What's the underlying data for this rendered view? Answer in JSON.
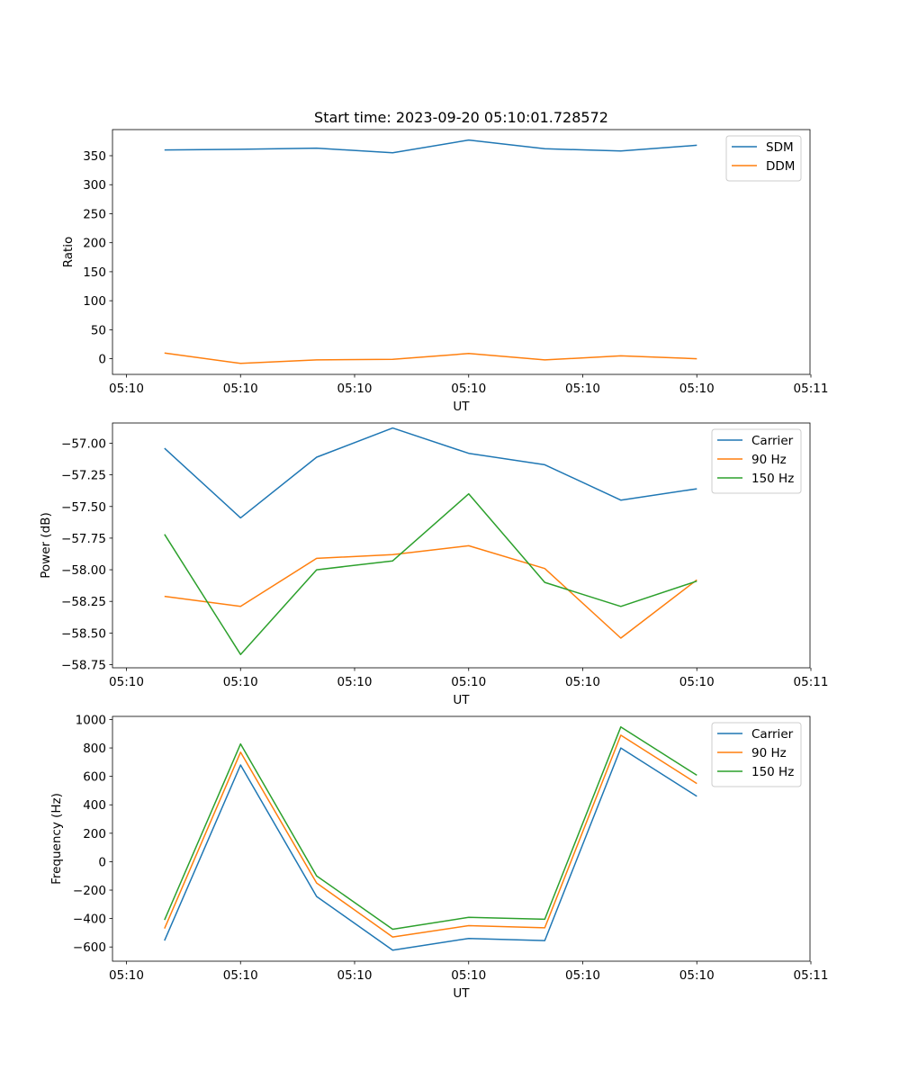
{
  "title": "Start time: 2023-09-20 05:10:01.728572",
  "chart_data": [
    {
      "type": "line",
      "xlabel": "UT",
      "ylabel": "Ratio",
      "x_tick_labels": [
        "05:10",
        "05:10",
        "05:10",
        "05:10",
        "05:10",
        "05:10",
        "05:11"
      ],
      "y_ticks": [
        "0",
        "50",
        "100",
        "150",
        "200",
        "250",
        "300",
        "350"
      ],
      "ylim": [
        -27,
        395
      ],
      "legend_position": "top-right",
      "x": [
        1,
        2,
        3,
        4,
        5,
        6,
        7,
        8
      ],
      "series": [
        {
          "name": "SDM",
          "color": "#1f77b4",
          "values": [
            360,
            361,
            363,
            355,
            377,
            362,
            358,
            368
          ]
        },
        {
          "name": "DDM",
          "color": "#ff7f0e",
          "values": [
            10,
            -8,
            -2,
            -1,
            9,
            -2,
            5,
            0
          ]
        }
      ]
    },
    {
      "type": "line",
      "xlabel": "UT",
      "ylabel": "Power (dB)",
      "x_tick_labels": [
        "05:10",
        "05:10",
        "05:10",
        "05:10",
        "05:10",
        "05:10",
        "05:11"
      ],
      "y_ticks": [
        "−58.75",
        "−58.50",
        "−58.25",
        "−58.00",
        "−57.75",
        "−57.50",
        "−57.25",
        "−57.00"
      ],
      "ylim": [
        -58.775,
        -56.84
      ],
      "legend_position": "top-right",
      "x": [
        1,
        2,
        3,
        4,
        5,
        6,
        7,
        8
      ],
      "series": [
        {
          "name": "Carrier",
          "color": "#1f77b4",
          "values": [
            -57.04,
            -57.59,
            -57.11,
            -56.88,
            -57.08,
            -57.17,
            -57.45,
            -57.36
          ]
        },
        {
          "name": "90 Hz",
          "color": "#ff7f0e",
          "values": [
            -58.21,
            -58.29,
            -57.91,
            -57.88,
            -57.81,
            -57.99,
            -58.54,
            -58.08
          ]
        },
        {
          "name": "150 Hz",
          "color": "#2ca02c",
          "values": [
            -57.72,
            -58.67,
            -58.0,
            -57.93,
            -57.4,
            -58.1,
            -58.29,
            -58.09
          ]
        }
      ]
    },
    {
      "type": "line",
      "xlabel": "UT",
      "ylabel": "Frequency (Hz)",
      "x_tick_labels": [
        "05:10",
        "05:10",
        "05:10",
        "05:10",
        "05:10",
        "05:10",
        "05:11"
      ],
      "y_ticks": [
        "−600",
        "−400",
        "−200",
        "0",
        "200",
        "400",
        "600",
        "800",
        "1000"
      ],
      "ylim": [
        -700,
        1022
      ],
      "legend_position": "top-right",
      "x": [
        1,
        2,
        3,
        4,
        5,
        6,
        7,
        8
      ],
      "series": [
        {
          "name": "Carrier",
          "color": "#1f77b4",
          "values": [
            -555,
            680,
            -245,
            -622,
            -540,
            -555,
            800,
            460
          ]
        },
        {
          "name": "90 Hz",
          "color": "#ff7f0e",
          "values": [
            -470,
            770,
            -150,
            -530,
            -450,
            -465,
            890,
            550
          ]
        },
        {
          "name": "150 Hz",
          "color": "#2ca02c",
          "values": [
            -410,
            828,
            -100,
            -475,
            -392,
            -405,
            948,
            608
          ]
        }
      ]
    }
  ]
}
